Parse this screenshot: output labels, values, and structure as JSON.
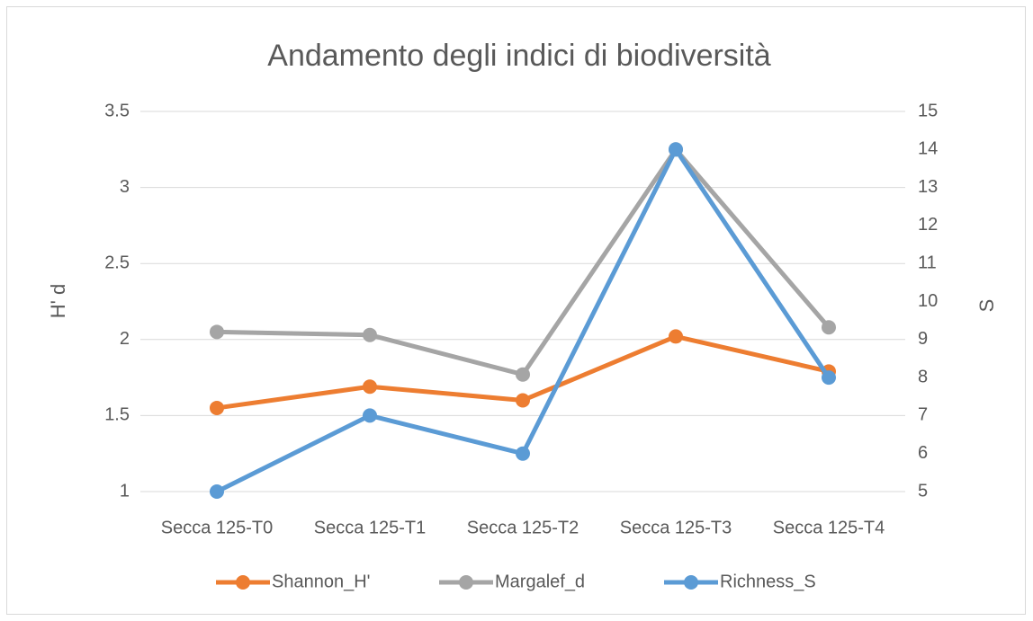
{
  "chart_data": {
    "type": "line",
    "title": "Andamento degli indici di biodiversità",
    "y_label": "H' d",
    "y2_label": "S",
    "categories": [
      "Secca 125-T0",
      "Secca 125-T1",
      "Secca 125-T2",
      "Secca 125-T3",
      "Secca 125-T4"
    ],
    "series": [
      {
        "name": "Shannon_H'",
        "color": "#ed7d31",
        "values": [
          1.55,
          1.69,
          1.6,
          2.02,
          1.79
        ]
      },
      {
        "name": "Margalef_d",
        "color": "#a5a5a5",
        "values": [
          2.05,
          2.03,
          1.77,
          3.25,
          2.08
        ]
      },
      {
        "name": "Richness_S",
        "color": "#5b9bd5",
        "axis": "y2",
        "values": [
          5,
          7,
          6,
          14,
          8
        ]
      }
    ],
    "ylim": [
      1,
      3.5
    ],
    "yticks": [
      1,
      1.5,
      2,
      2.5,
      3,
      3.5
    ],
    "y2lim": [
      5,
      15
    ],
    "y2ticks": [
      5,
      6,
      7,
      8,
      9,
      10,
      11,
      12,
      13,
      14,
      15
    ],
    "grid": true,
    "legend": "bottom"
  }
}
